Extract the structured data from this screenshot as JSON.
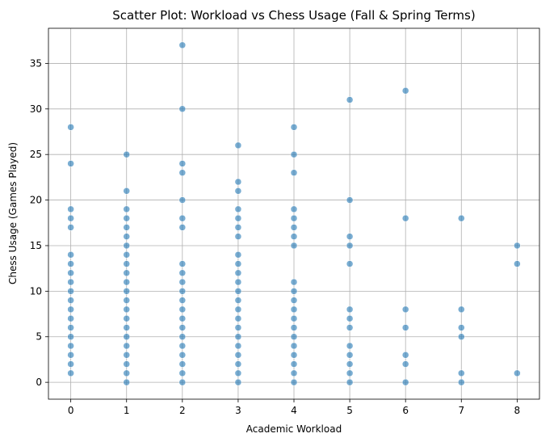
{
  "chart_data": {
    "type": "scatter",
    "title": "Scatter Plot: Workload vs Chess Usage (Fall & Spring Terms)",
    "xlabel": "Academic Workload",
    "ylabel": "Chess Usage (Games Played)",
    "xlim": [
      -0.4,
      8.4
    ],
    "ylim": [
      -1.85,
      38.85
    ],
    "xticks": [
      0,
      1,
      2,
      3,
      4,
      5,
      6,
      7,
      8
    ],
    "yticks": [
      0,
      5,
      10,
      15,
      20,
      25,
      30,
      35
    ],
    "grid": true,
    "color": "#1f77b4",
    "points": [
      [
        0,
        1
      ],
      [
        0,
        2
      ],
      [
        0,
        3
      ],
      [
        0,
        4
      ],
      [
        0,
        5
      ],
      [
        0,
        6
      ],
      [
        0,
        7
      ],
      [
        0,
        8
      ],
      [
        0,
        9
      ],
      [
        0,
        10
      ],
      [
        0,
        11
      ],
      [
        0,
        12
      ],
      [
        0,
        13
      ],
      [
        0,
        14
      ],
      [
        0,
        17
      ],
      [
        0,
        18
      ],
      [
        0,
        19
      ],
      [
        0,
        24
      ],
      [
        0,
        28
      ],
      [
        1,
        0
      ],
      [
        1,
        1
      ],
      [
        1,
        2
      ],
      [
        1,
        3
      ],
      [
        1,
        4
      ],
      [
        1,
        5
      ],
      [
        1,
        6
      ],
      [
        1,
        7
      ],
      [
        1,
        8
      ],
      [
        1,
        9
      ],
      [
        1,
        10
      ],
      [
        1,
        11
      ],
      [
        1,
        12
      ],
      [
        1,
        13
      ],
      [
        1,
        14
      ],
      [
        1,
        15
      ],
      [
        1,
        16
      ],
      [
        1,
        17
      ],
      [
        1,
        18
      ],
      [
        1,
        19
      ],
      [
        1,
        21
      ],
      [
        1,
        25
      ],
      [
        2,
        0
      ],
      [
        2,
        1
      ],
      [
        2,
        2
      ],
      [
        2,
        3
      ],
      [
        2,
        4
      ],
      [
        2,
        5
      ],
      [
        2,
        6
      ],
      [
        2,
        7
      ],
      [
        2,
        8
      ],
      [
        2,
        9
      ],
      [
        2,
        10
      ],
      [
        2,
        11
      ],
      [
        2,
        12
      ],
      [
        2,
        13
      ],
      [
        2,
        17
      ],
      [
        2,
        18
      ],
      [
        2,
        20
      ],
      [
        2,
        23
      ],
      [
        2,
        24
      ],
      [
        2,
        30
      ],
      [
        2,
        37
      ],
      [
        3,
        0
      ],
      [
        3,
        1
      ],
      [
        3,
        2
      ],
      [
        3,
        3
      ],
      [
        3,
        4
      ],
      [
        3,
        5
      ],
      [
        3,
        6
      ],
      [
        3,
        7
      ],
      [
        3,
        8
      ],
      [
        3,
        9
      ],
      [
        3,
        10
      ],
      [
        3,
        11
      ],
      [
        3,
        12
      ],
      [
        3,
        13
      ],
      [
        3,
        14
      ],
      [
        3,
        16
      ],
      [
        3,
        17
      ],
      [
        3,
        18
      ],
      [
        3,
        19
      ],
      [
        3,
        21
      ],
      [
        3,
        22
      ],
      [
        3,
        26
      ],
      [
        4,
        0
      ],
      [
        4,
        1
      ],
      [
        4,
        2
      ],
      [
        4,
        3
      ],
      [
        4,
        4
      ],
      [
        4,
        5
      ],
      [
        4,
        6
      ],
      [
        4,
        7
      ],
      [
        4,
        8
      ],
      [
        4,
        9
      ],
      [
        4,
        10
      ],
      [
        4,
        11
      ],
      [
        4,
        15
      ],
      [
        4,
        16
      ],
      [
        4,
        17
      ],
      [
        4,
        18
      ],
      [
        4,
        19
      ],
      [
        4,
        23
      ],
      [
        4,
        25
      ],
      [
        4,
        28
      ],
      [
        5,
        0
      ],
      [
        5,
        1
      ],
      [
        5,
        2
      ],
      [
        5,
        3
      ],
      [
        5,
        4
      ],
      [
        5,
        6
      ],
      [
        5,
        7
      ],
      [
        5,
        8
      ],
      [
        5,
        13
      ],
      [
        5,
        15
      ],
      [
        5,
        16
      ],
      [
        5,
        20
      ],
      [
        5,
        31
      ],
      [
        6,
        0
      ],
      [
        6,
        2
      ],
      [
        6,
        3
      ],
      [
        6,
        6
      ],
      [
        6,
        8
      ],
      [
        6,
        18
      ],
      [
        6,
        32
      ],
      [
        7,
        0
      ],
      [
        7,
        1
      ],
      [
        7,
        5
      ],
      [
        7,
        6
      ],
      [
        7,
        8
      ],
      [
        7,
        18
      ],
      [
        8,
        1
      ],
      [
        8,
        13
      ],
      [
        8,
        15
      ]
    ]
  }
}
